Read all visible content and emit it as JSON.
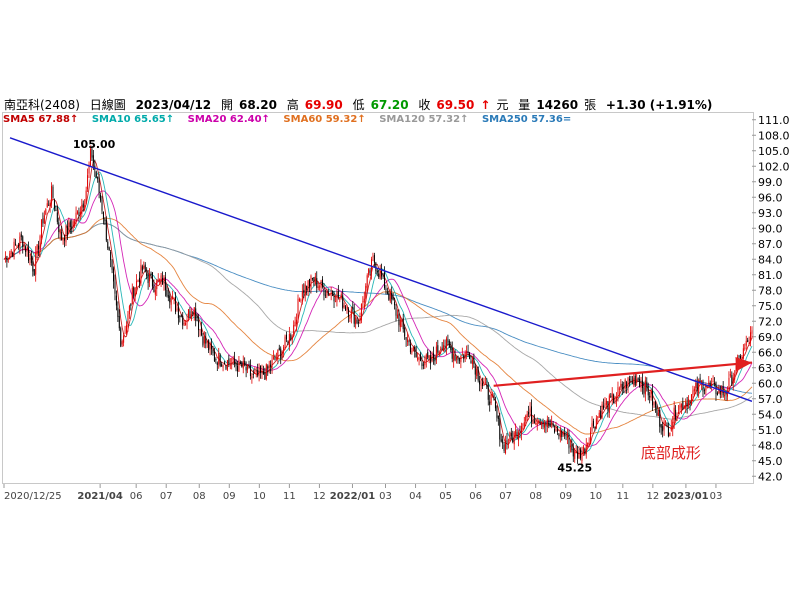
{
  "header": {
    "stock": "南亞科(2408)",
    "period": "日線圖",
    "date": "2023/04/12",
    "open_label": "開",
    "open": "68.20",
    "high_label": "高",
    "high": "69.90",
    "low_label": "低",
    "low": "67.20",
    "close_label": "收",
    "close": "69.50",
    "arrow": "↑",
    "currency": "元",
    "volume_label": "量",
    "volume": "14260",
    "volume_unit": "張",
    "change": "+1.30 (+1.91%)"
  },
  "sma_legend": [
    {
      "text": "SMA5 67.88↑",
      "color": "#c00000"
    },
    {
      "text": "SMA10 65.65↑",
      "color": "#00aaaa"
    },
    {
      "text": "SMA20 62.40↑",
      "color": "#cc00aa"
    },
    {
      "text": "SMA60 59.32↑",
      "color": "#e07020"
    },
    {
      "text": "SMA120 57.32↑",
      "color": "#999999"
    },
    {
      "text": "SMA250 57.36=",
      "color": "#2a7ab8"
    }
  ],
  "chart_data": {
    "type": "candlestick",
    "y_ticks": [
      "111.0",
      "108.0",
      "105.0",
      "102.0",
      "99.0",
      "96.0",
      "93.0",
      "90.0",
      "87.0",
      "84.0",
      "81.0",
      "78.0",
      "75.0",
      "72.0",
      "69.0",
      "66.0",
      "63.0",
      "60.0",
      "57.0",
      "54.0",
      "51.0",
      "48.0",
      "45.0",
      "42.0"
    ],
    "ylim": [
      40.5,
      112.5
    ],
    "x_labels": [
      {
        "m": 0,
        "label": "2020/12/25",
        "bold": false
      },
      {
        "m": 3.2,
        "label": "2021/04",
        "bold": true
      },
      {
        "m": 4.4,
        "label": "06",
        "bold": false
      },
      {
        "m": 5.4,
        "label": "07",
        "bold": false
      },
      {
        "m": 6.5,
        "label": "08",
        "bold": false
      },
      {
        "m": 7.5,
        "label": "09",
        "bold": false
      },
      {
        "m": 8.5,
        "label": "10",
        "bold": false
      },
      {
        "m": 9.5,
        "label": "11",
        "bold": false
      },
      {
        "m": 10.5,
        "label": "12",
        "bold": false
      },
      {
        "m": 11.6,
        "label": "2022/01",
        "bold": true
      },
      {
        "m": 12.7,
        "label": "03",
        "bold": false
      },
      {
        "m": 13.7,
        "label": "04",
        "bold": false
      },
      {
        "m": 14.7,
        "label": "05",
        "bold": false
      },
      {
        "m": 15.7,
        "label": "06",
        "bold": false
      },
      {
        "m": 16.7,
        "label": "07",
        "bold": false
      },
      {
        "m": 17.7,
        "label": "08",
        "bold": false
      },
      {
        "m": 18.7,
        "label": "09",
        "bold": false
      },
      {
        "m": 19.7,
        "label": "10",
        "bold": false
      },
      {
        "m": 20.6,
        "label": "11",
        "bold": false
      },
      {
        "m": 21.6,
        "label": "12",
        "bold": false
      },
      {
        "m": 22.7,
        "label": "2023/01",
        "bold": true
      },
      {
        "m": 23.7,
        "label": "03",
        "bold": false
      }
    ],
    "m_range": [
      0,
      24.9
    ],
    "close_path": [
      [
        0,
        84
      ],
      [
        0.6,
        88
      ],
      [
        1.0,
        82
      ],
      [
        1.3,
        92
      ],
      [
        1.6,
        97
      ],
      [
        1.9,
        88
      ],
      [
        2.3,
        91
      ],
      [
        2.7,
        96
      ],
      [
        2.9,
        105
      ],
      [
        3.1,
        99
      ],
      [
        3.3,
        93
      ],
      [
        3.5,
        85
      ],
      [
        3.7,
        76
      ],
      [
        3.9,
        68
      ],
      [
        4.1,
        72
      ],
      [
        4.3,
        78
      ],
      [
        4.6,
        82
      ],
      [
        5.0,
        79
      ],
      [
        5.3,
        80
      ],
      [
        5.6,
        76
      ],
      [
        6.0,
        72
      ],
      [
        6.3,
        75
      ],
      [
        6.6,
        69
      ],
      [
        7.0,
        65
      ],
      [
        7.5,
        64
      ],
      [
        8.0,
        63
      ],
      [
        8.3,
        61
      ],
      [
        8.7,
        62
      ],
      [
        9.2,
        66
      ],
      [
        9.6,
        70
      ],
      [
        9.9,
        78
      ],
      [
        10.3,
        80
      ],
      [
        10.7,
        78
      ],
      [
        11.1,
        77
      ],
      [
        11.5,
        74
      ],
      [
        11.8,
        72
      ],
      [
        12.1,
        80
      ],
      [
        12.3,
        84
      ],
      [
        12.6,
        80
      ],
      [
        12.9,
        76
      ],
      [
        13.3,
        70
      ],
      [
        13.7,
        65
      ],
      [
        14.2,
        64
      ],
      [
        14.6,
        68
      ],
      [
        15.1,
        65
      ],
      [
        15.5,
        66
      ],
      [
        15.9,
        60
      ],
      [
        16.3,
        56
      ],
      [
        16.6,
        48
      ],
      [
        17.0,
        50
      ],
      [
        17.4,
        54
      ],
      [
        17.9,
        53
      ],
      [
        18.3,
        51
      ],
      [
        18.7,
        50
      ],
      [
        19.0,
        46
      ],
      [
        19.3,
        47
      ],
      [
        19.6,
        52
      ],
      [
        19.9,
        55
      ],
      [
        20.3,
        57
      ],
      [
        20.7,
        60
      ],
      [
        21.1,
        61
      ],
      [
        21.5,
        58
      ],
      [
        21.8,
        53
      ],
      [
        22.1,
        51
      ],
      [
        22.4,
        55
      ],
      [
        22.8,
        57
      ],
      [
        23.2,
        60
      ],
      [
        23.6,
        59
      ],
      [
        24.0,
        58
      ],
      [
        24.3,
        62
      ],
      [
        24.6,
        66
      ],
      [
        24.9,
        69.5
      ]
    ],
    "annotations": [
      {
        "text": "105.00",
        "m": 3.0,
        "v": 105,
        "color": "#000000"
      },
      {
        "text": "45.25",
        "m": 19.0,
        "v": 45.25,
        "color": "#000000"
      },
      {
        "text": "底部成形",
        "m": 22.2,
        "v": 45.5,
        "color": "#e02020"
      }
    ],
    "trendlines": [
      {
        "name": "downtrend",
        "color": "#1a1acc",
        "from": [
          0.2,
          107.5
        ],
        "to": [
          24.9,
          56.5
        ]
      },
      {
        "name": "breakout-arrow",
        "color": "#e02020",
        "from": [
          16.3,
          59.5
        ],
        "to": [
          24.9,
          64.0
        ]
      }
    ]
  }
}
